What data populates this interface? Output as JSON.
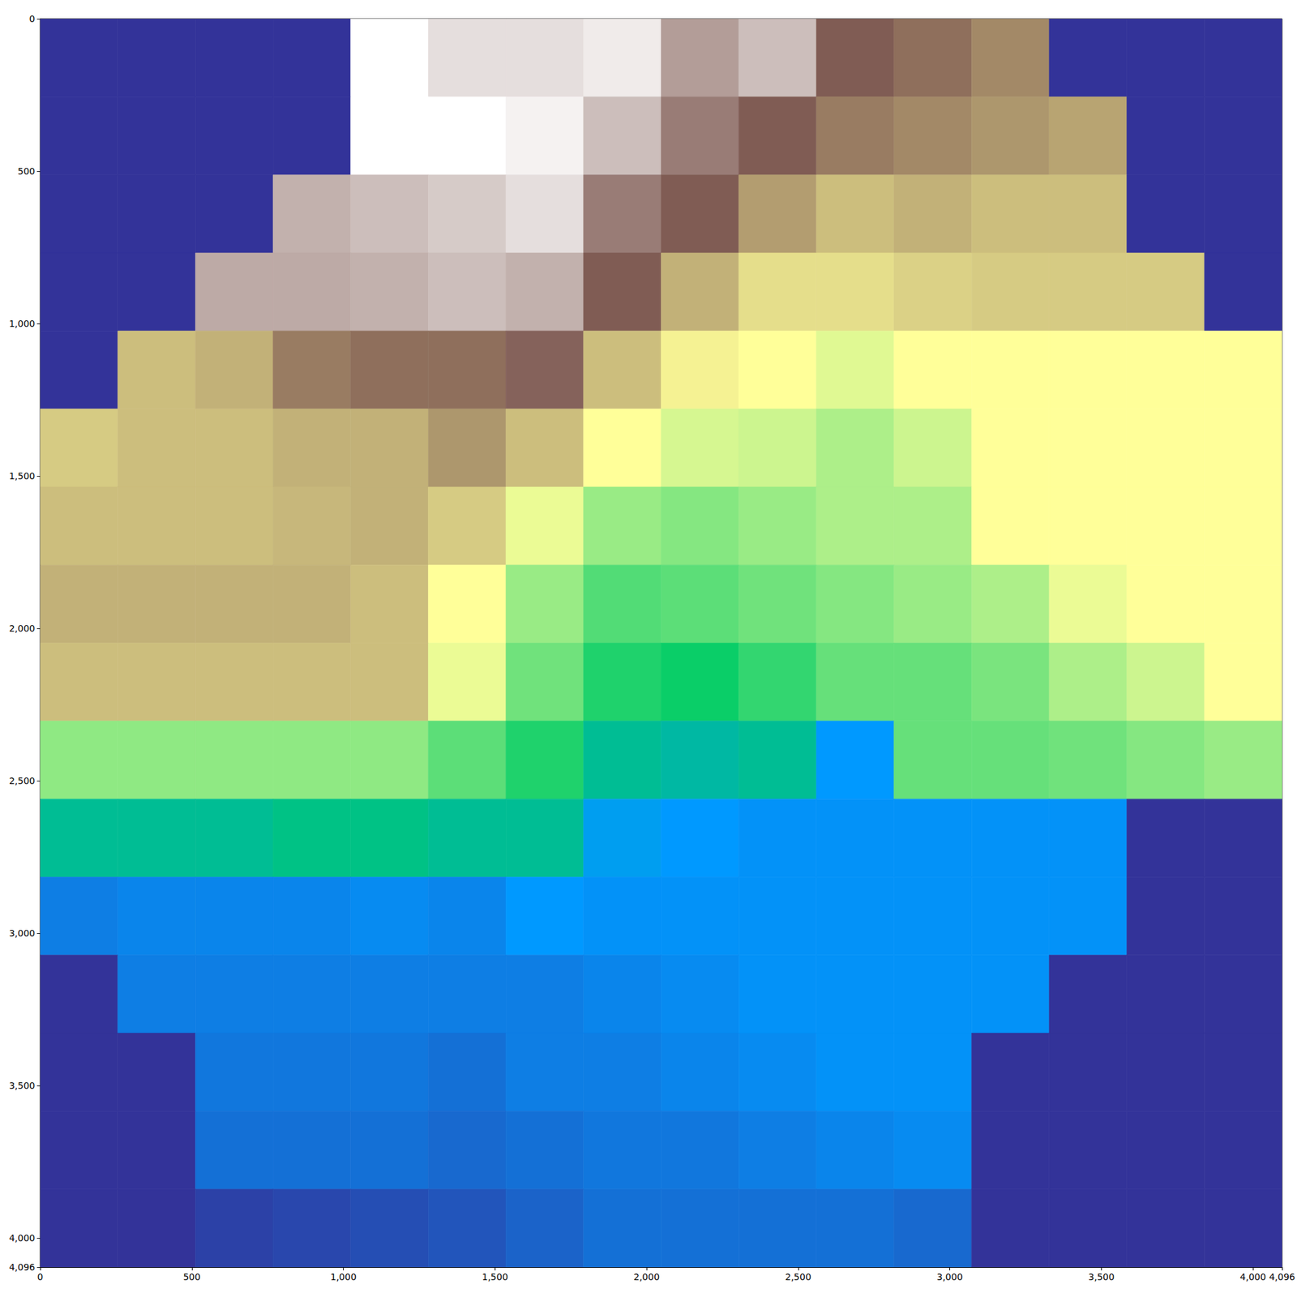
{
  "chart_data": {
    "type": "heatmap",
    "x": [
      128,
      384,
      640,
      896,
      1152,
      1408,
      1664,
      1920,
      2176,
      2432,
      2688,
      2944,
      3200,
      3456,
      3712,
      3968
    ],
    "y": [
      128,
      384,
      640,
      896,
      1152,
      1408,
      1664,
      1920,
      2176,
      2432,
      2688,
      2944,
      3200,
      3456,
      3712,
      3968
    ],
    "values": [
      [
        0,
        0,
        0,
        0,
        1.0,
        0.95,
        0.95,
        0.97,
        0.85,
        0.9,
        0.75,
        0.72,
        0.68,
        0,
        0,
        0
      ],
      [
        0,
        0,
        0,
        0,
        1.0,
        1.0,
        0.98,
        0.9,
        0.8,
        0.75,
        0.7,
        0.68,
        0.66,
        0.64,
        0,
        0
      ],
      [
        0,
        0,
        0,
        0.88,
        0.9,
        0.92,
        0.95,
        0.8,
        0.75,
        0.65,
        0.6,
        0.62,
        0.6,
        0.6,
        0,
        0
      ],
      [
        0,
        0,
        0.87,
        0.87,
        0.88,
        0.9,
        0.88,
        0.75,
        0.62,
        0.55,
        0.55,
        0.57,
        0.58,
        0.58,
        0.58,
        0
      ],
      [
        0,
        0.6,
        0.62,
        0.7,
        0.72,
        0.72,
        0.76,
        0.6,
        0.52,
        0.5,
        0.47,
        0.5,
        0.5,
        0.5,
        0.5,
        0.5
      ],
      [
        0.58,
        0.6,
        0.6,
        0.62,
        0.62,
        0.66,
        0.6,
        0.5,
        0.46,
        0.45,
        0.42,
        0.45,
        0.5,
        0.5,
        0.5,
        0.5
      ],
      [
        0.6,
        0.6,
        0.6,
        0.61,
        0.62,
        0.58,
        0.48,
        0.4,
        0.38,
        0.4,
        0.42,
        0.42,
        0.5,
        0.5,
        0.5,
        0.5
      ],
      [
        0.62,
        0.62,
        0.62,
        0.62,
        0.6,
        0.5,
        0.4,
        0.33,
        0.34,
        0.36,
        0.38,
        0.4,
        0.42,
        0.48,
        0.5,
        0.5
      ],
      [
        0.6,
        0.6,
        0.6,
        0.6,
        0.6,
        0.48,
        0.36,
        0.28,
        0.26,
        0.3,
        0.35,
        0.35,
        0.37,
        0.42,
        0.45,
        0.5
      ],
      [
        0.39,
        0.39,
        0.39,
        0.39,
        0.39,
        0.34,
        0.28,
        0.22,
        0.21,
        0.22,
        0.15,
        0.35,
        0.35,
        0.36,
        0.38,
        0.4
      ],
      [
        0.22,
        0.22,
        0.22,
        0.23,
        0.23,
        0.22,
        0.22,
        0.16,
        0.15,
        0.14,
        0.14,
        0.14,
        0.14,
        0.14,
        0,
        0
      ],
      [
        0.11,
        0.12,
        0.12,
        0.12,
        0.13,
        0.12,
        0.15,
        0.14,
        0.14,
        0.14,
        0.14,
        0.14,
        0.14,
        0.14,
        0,
        0
      ],
      [
        0,
        0.11,
        0.11,
        0.11,
        0.11,
        0.11,
        0.11,
        0.12,
        0.13,
        0.14,
        0.14,
        0.14,
        0.14,
        0,
        0,
        0
      ],
      [
        0,
        0,
        0.1,
        0.1,
        0.1,
        0.09,
        0.11,
        0.11,
        0.12,
        0.13,
        0.14,
        0.14,
        0,
        0,
        0,
        0
      ],
      [
        0,
        0,
        0.09,
        0.09,
        0.09,
        0.08,
        0.09,
        0.1,
        0.1,
        0.11,
        0.12,
        0.13,
        0,
        0,
        0,
        0
      ],
      [
        0,
        0,
        0.02,
        0.03,
        0.04,
        0.05,
        0.07,
        0.09,
        0.09,
        0.09,
        0.09,
        0.08,
        0,
        0,
        0,
        0
      ]
    ],
    "color_range": [
      0,
      1
    ],
    "xlim": [
      0,
      4096
    ],
    "ylim": [
      4096,
      0
    ],
    "xticks": [
      0,
      500,
      1000,
      1500,
      2000,
      2500,
      3000,
      3500,
      4000
    ],
    "yticks": [
      0,
      500,
      1000,
      1500,
      2000,
      2500,
      3000,
      3500,
      4000
    ],
    "grid": false
  }
}
